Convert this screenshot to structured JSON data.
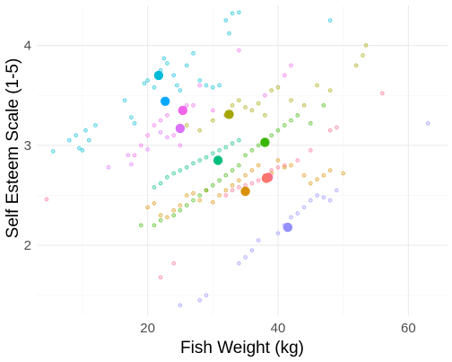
{
  "chart_data": {
    "type": "scatter",
    "title": "",
    "xlabel": "Fish Weight (kg)",
    "ylabel": "Self Esteem Scale (1-5)",
    "xlim": [
      3,
      66
    ],
    "ylim": [
      1.3,
      4.4
    ],
    "x_ticks": [
      20,
      40,
      60
    ],
    "y_ticks": [
      2,
      3,
      4
    ],
    "grid": true,
    "legend": "none",
    "small_point_opacity": 0.5,
    "groups": [
      {
        "color": "#00BCD8",
        "mean": [
          21.7,
          3.7
        ],
        "points": [
          [
            5.5,
            2.94
          ],
          [
            8,
            3.05
          ],
          [
            9,
            3.1
          ],
          [
            9.5,
            2.97
          ],
          [
            10,
            2.95
          ],
          [
            10.5,
            3.15
          ],
          [
            11,
            3.05
          ],
          [
            12,
            3.2
          ],
          [
            16.5,
            3.45
          ],
          [
            17.5,
            3.28
          ],
          [
            18,
            3.22
          ],
          [
            19.5,
            3.62
          ],
          [
            20,
            3.65
          ],
          [
            21,
            3.58
          ],
          [
            22,
            3.75
          ],
          [
            22.5,
            3.87
          ],
          [
            23,
            3.82
          ],
          [
            24,
            3.7
          ],
          [
            24.5,
            3.6
          ],
          [
            25,
            3.55
          ],
          [
            26,
            3.8
          ],
          [
            27,
            3.92
          ],
          [
            28,
            3.65
          ],
          [
            29,
            3.6
          ],
          [
            30,
            3.58
          ],
          [
            31,
            3.6
          ],
          [
            32,
            4.25
          ],
          [
            32.5,
            4.12
          ],
          [
            33,
            4.32
          ],
          [
            34,
            4.33
          ],
          [
            48,
            4.25
          ]
        ]
      },
      {
        "color": "#00A8FF",
        "mean": [
          22.7,
          3.44
        ],
        "points": []
      },
      {
        "color": "#F066EA",
        "mean": [
          25.4,
          3.35
        ],
        "points": [
          [
            18,
            2.9
          ],
          [
            19,
            3.0
          ],
          [
            20,
            3.1
          ],
          [
            21,
            3.2
          ],
          [
            22,
            3.25
          ],
          [
            23,
            3.3
          ],
          [
            24,
            3.1
          ],
          [
            25,
            3.0
          ],
          [
            26,
            3.4
          ],
          [
            27,
            3.4
          ],
          [
            28,
            3.6
          ],
          [
            30,
            3.35
          ],
          [
            32,
            3.3
          ],
          [
            34,
            3.95
          ],
          [
            38,
            3.5
          ],
          [
            41,
            3.7
          ],
          [
            42,
            3.8
          ]
        ]
      },
      {
        "color": "#DC71FA",
        "mean": [
          25.0,
          3.17
        ],
        "points": [
          [
            14,
            2.78
          ],
          [
            17,
            2.9
          ],
          [
            17.5,
            2.81
          ],
          [
            20,
            2.96
          ],
          [
            22,
            3.13
          ],
          [
            23,
            3.08
          ]
        ]
      },
      {
        "color": "#9590FF",
        "mean": [
          41.5,
          2.18
        ],
        "points": [
          [
            25,
            1.4
          ],
          [
            28,
            1.45
          ],
          [
            29,
            1.5
          ],
          [
            34,
            1.82
          ],
          [
            35,
            1.88
          ],
          [
            36,
            1.95
          ],
          [
            37,
            2.05
          ],
          [
            40,
            2.12
          ],
          [
            41,
            2.2
          ],
          [
            42,
            2.28
          ],
          [
            43,
            2.32
          ],
          [
            44,
            2.38
          ],
          [
            45,
            2.45
          ],
          [
            46,
            2.5
          ],
          [
            47,
            2.48
          ],
          [
            48,
            2.45
          ],
          [
            49,
            2.55
          ],
          [
            63,
            3.22
          ]
        ]
      },
      {
        "color": "#FF6C91",
        "mean": [
          38.5,
          2.68
        ],
        "points": [
          [
            4.5,
            2.46
          ],
          [
            22,
            1.68
          ],
          [
            24,
            1.82
          ],
          [
            32,
            2.5
          ],
          [
            33,
            2.55
          ],
          [
            34,
            2.58
          ],
          [
            35,
            2.6
          ],
          [
            36,
            2.62
          ],
          [
            37,
            2.65
          ],
          [
            38,
            2.7
          ],
          [
            39,
            2.75
          ],
          [
            40,
            2.78
          ],
          [
            41,
            2.8
          ],
          [
            43,
            2.85
          ],
          [
            45,
            2.95
          ],
          [
            48,
            3.15
          ],
          [
            49,
            3.18
          ],
          [
            56,
            3.52
          ]
        ]
      },
      {
        "color": "#D89000",
        "mean": [
          35.0,
          2.54
        ],
        "points": [
          [
            20,
            2.38
          ],
          [
            21,
            2.42
          ],
          [
            22,
            2.3
          ],
          [
            23,
            2.28
          ],
          [
            24,
            2.35
          ],
          [
            25,
            2.4
          ],
          [
            26,
            2.5
          ],
          [
            27,
            2.52
          ],
          [
            28,
            2.45
          ],
          [
            29,
            2.55
          ],
          [
            30,
            2.43
          ],
          [
            31,
            2.5
          ],
          [
            32,
            2.55
          ],
          [
            33,
            2.6
          ],
          [
            34,
            2.65
          ],
          [
            35,
            2.7
          ],
          [
            36,
            2.75
          ],
          [
            37,
            2.8
          ],
          [
            38,
            2.68
          ],
          [
            39,
            2.72
          ],
          [
            40,
            2.85
          ],
          [
            41,
            2.78
          ],
          [
            42,
            2.8
          ],
          [
            44,
            2.7
          ],
          [
            45,
            2.62
          ],
          [
            46,
            2.66
          ],
          [
            47,
            2.7
          ],
          [
            48,
            2.75
          ],
          [
            50,
            2.72
          ]
        ]
      },
      {
        "color": "#A3A500",
        "mean": [
          32.5,
          3.31
        ],
        "points": [
          [
            26,
            3.2
          ],
          [
            28,
            3.15
          ],
          [
            30,
            3.25
          ],
          [
            32,
            3.3
          ],
          [
            33,
            3.4
          ],
          [
            34,
            3.45
          ],
          [
            35,
            3.38
          ],
          [
            36,
            3.35
          ],
          [
            37,
            3.42
          ],
          [
            38,
            3.3
          ],
          [
            39,
            3.55
          ],
          [
            40,
            3.58
          ],
          [
            42,
            3.45
          ],
          [
            44,
            3.4
          ],
          [
            46,
            3.6
          ],
          [
            48,
            3.55
          ],
          [
            52,
            3.8
          ],
          [
            53,
            3.9
          ],
          [
            53.5,
            4.0
          ]
        ]
      },
      {
        "color": "#39B600",
        "mean": [
          38.0,
          3.03
        ],
        "points": [
          [
            19,
            2.2
          ],
          [
            21,
            2.2
          ],
          [
            22,
            2.25
          ],
          [
            24,
            2.3
          ],
          [
            25,
            2.35
          ],
          [
            26,
            2.4
          ],
          [
            27,
            2.45
          ],
          [
            28,
            2.5
          ],
          [
            29,
            2.55
          ],
          [
            30,
            2.6
          ],
          [
            31,
            2.65
          ],
          [
            32,
            2.7
          ],
          [
            33,
            2.75
          ],
          [
            34,
            2.8
          ],
          [
            35,
            2.9
          ],
          [
            36,
            2.95
          ],
          [
            37,
            3.0
          ],
          [
            38,
            3.05
          ],
          [
            39,
            3.1
          ],
          [
            40,
            3.15
          ],
          [
            41,
            3.2
          ],
          [
            42,
            3.25
          ],
          [
            43,
            3.3
          ],
          [
            45,
            3.22
          ],
          [
            47,
            3.4
          ]
        ]
      },
      {
        "color": "#00BF7D",
        "mean": [
          30.8,
          2.85
        ],
        "points": [
          [
            21,
            2.58
          ],
          [
            22,
            2.62
          ],
          [
            23,
            2.68
          ],
          [
            24,
            2.72
          ],
          [
            25,
            2.75
          ],
          [
            26,
            2.78
          ],
          [
            27,
            2.82
          ],
          [
            28,
            2.85
          ],
          [
            29,
            2.88
          ],
          [
            30,
            2.92
          ],
          [
            31,
            2.95
          ],
          [
            32,
            2.98
          ],
          [
            33,
            3.02
          ],
          [
            34,
            3.05
          ]
        ]
      },
      {
        "color": "#F8766D",
        "mean": [
          38.2,
          2.67
        ],
        "points": []
      }
    ]
  }
}
